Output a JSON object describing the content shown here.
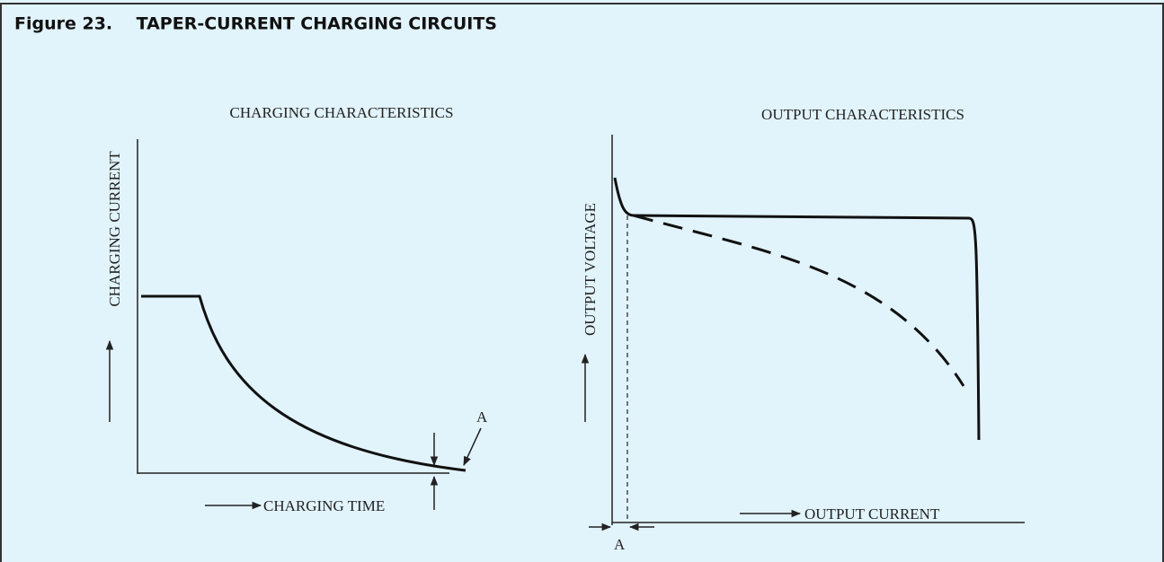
{
  "header": {
    "title": "Figure 23.    TAPER-CURRENT CHARGING CIRCUITS"
  },
  "left_plot": {
    "title": "CHARGING CHARACTERISTICS",
    "y_label": "CHARGING CURRENT",
    "x_label": "CHARGING TIME",
    "annotation": "A"
  },
  "right_plot": {
    "title": "OUTPUT CHARACTERISTICS",
    "y_label": "OUTPUT VOLTAGE",
    "x_label": "OUTPUT CURRENT",
    "annotation": "A"
  }
}
